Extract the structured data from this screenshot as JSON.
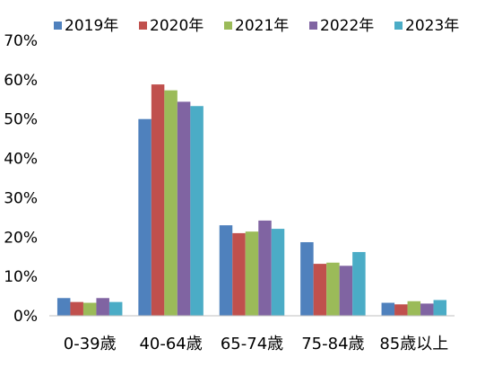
{
  "chart_data": {
    "type": "bar",
    "title": "",
    "xlabel": "",
    "ylabel": "",
    "categories": [
      "0-39歳",
      "40-64歳",
      "65-74歳",
      "75-84歳",
      "85歳以上"
    ],
    "series": [
      {
        "name": "2019年",
        "color": "#4f81bd",
        "values": [
          4.5,
          50.0,
          23.0,
          18.7,
          3.3
        ]
      },
      {
        "name": "2020年",
        "color": "#c0504d",
        "values": [
          3.5,
          58.8,
          21.0,
          13.2,
          2.9
        ]
      },
      {
        "name": "2021年",
        "color": "#9bbb59",
        "values": [
          3.3,
          57.3,
          21.4,
          13.5,
          3.7
        ]
      },
      {
        "name": "2022年",
        "color": "#8064a2",
        "values": [
          4.5,
          54.4,
          24.2,
          12.7,
          3.1
        ]
      },
      {
        "name": "2023年",
        "color": "#4bacc6",
        "values": [
          3.5,
          53.3,
          22.1,
          16.2,
          4.0
        ]
      }
    ],
    "ylim": [
      0,
      70
    ],
    "yticks": [
      "0%",
      "10%",
      "20%",
      "30%",
      "40%",
      "50%",
      "60%",
      "70%"
    ],
    "grid": false,
    "legend_position": "top"
  }
}
